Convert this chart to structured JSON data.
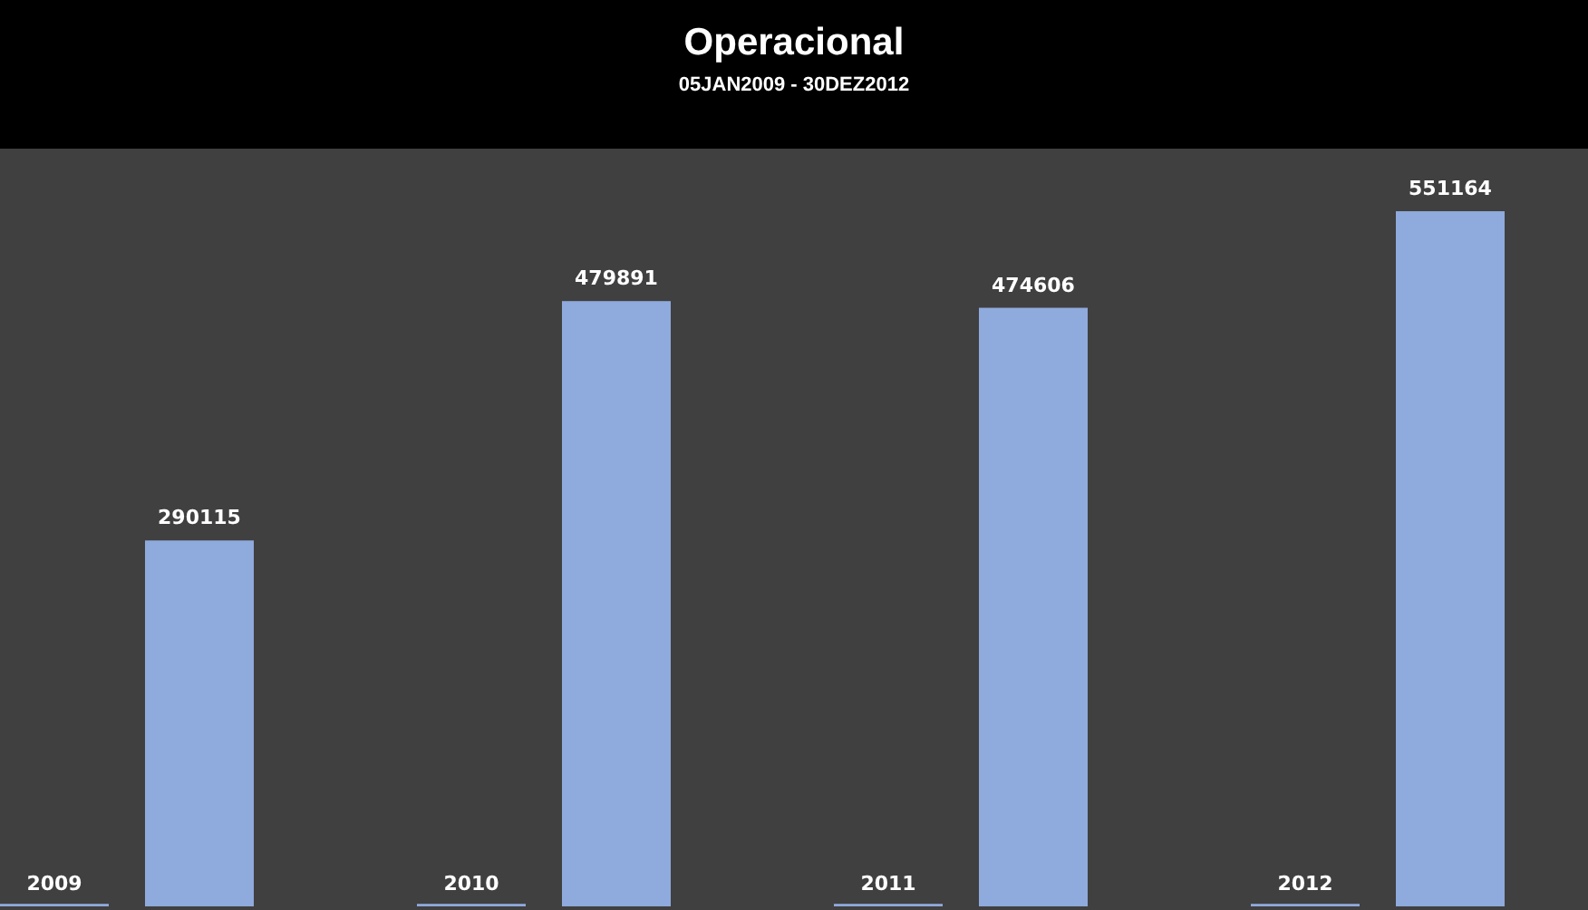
{
  "chart_data": {
    "type": "bar",
    "title": "Operacional",
    "subtitle": "05JAN2009 - 30DEZ2012",
    "categories": [
      "2009",
      "2010",
      "2011",
      "2012"
    ],
    "series": [
      {
        "color": "#8faadc",
        "values": [
          2009,
          2010,
          2011,
          2012
        ]
      },
      {
        "color": "#8faadc",
        "values": [
          290115,
          479891,
          474606,
          551164
        ],
        "value_labels": [
          "290115",
          "479891",
          "474606",
          "551164"
        ]
      }
    ]
  }
}
